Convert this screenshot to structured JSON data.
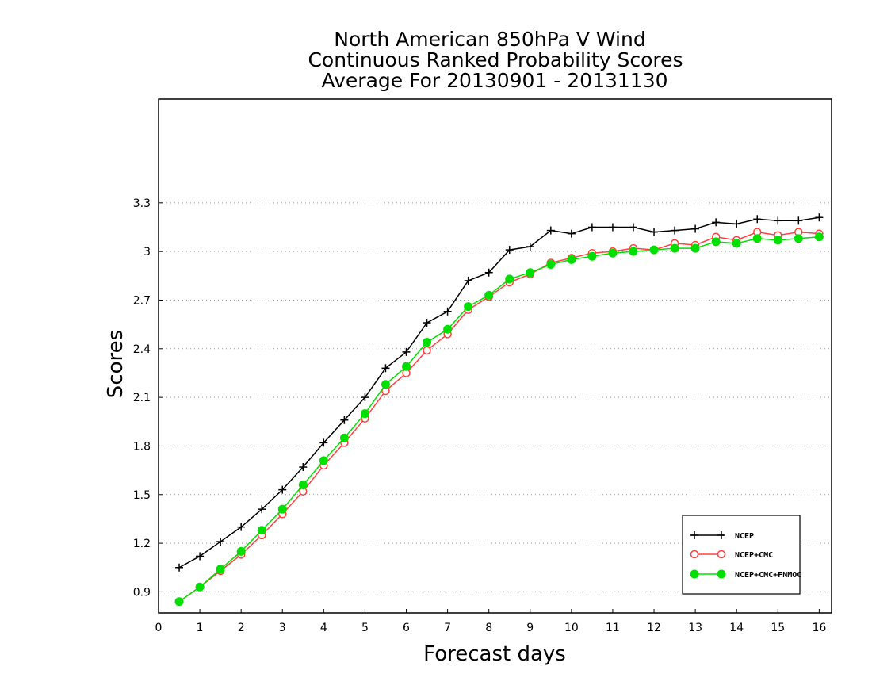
{
  "chart_data": {
    "type": "line",
    "title_lines": [
      "North American 850hPa V Wind",
      "Continuous Ranked Probability Scores",
      "Average For 20130901 - 20131130"
    ],
    "xlabel": "Forecast days",
    "ylabel": "Scores",
    "xlim": [
      0,
      16.3
    ],
    "ylim": [
      0.77,
      3.94
    ],
    "x_ticks": [
      0,
      1,
      2,
      3,
      4,
      5,
      6,
      7,
      8,
      9,
      10,
      11,
      12,
      13,
      14,
      15,
      16
    ],
    "y_ticks": [
      0.9,
      1.2,
      1.5,
      1.8,
      2.1,
      2.4,
      2.7,
      3.0,
      3.3
    ],
    "y_tick_labels": [
      "0.9",
      "1.2",
      "1.5",
      "1.8",
      "2.1",
      "2.4",
      "2.7",
      "3",
      "3.3"
    ],
    "grid": "horizontal dotted",
    "legend_position": "bottom-right",
    "x": [
      0.5,
      1,
      1.5,
      2,
      2.5,
      3,
      3.5,
      4,
      4.5,
      5,
      5.5,
      6,
      6.5,
      7,
      7.5,
      8,
      8.5,
      9,
      9.5,
      10,
      10.5,
      11,
      11.5,
      12,
      12.5,
      13,
      13.5,
      14,
      14.5,
      15,
      15.5,
      16
    ],
    "series": [
      {
        "name": "NCEP",
        "color": "#000000",
        "marker": "plus",
        "values": [
          1.05,
          1.12,
          1.21,
          1.3,
          1.41,
          1.53,
          1.67,
          1.82,
          1.96,
          2.1,
          2.28,
          2.38,
          2.56,
          2.63,
          2.82,
          2.87,
          3.01,
          3.03,
          3.13,
          3.11,
          3.15,
          3.15,
          3.15,
          3.12,
          3.13,
          3.14,
          3.18,
          3.17,
          3.2,
          3.19,
          3.19,
          3.21
        ]
      },
      {
        "name": "NCEP+CMC",
        "color": "#ff4040",
        "marker": "open-circle",
        "values": [
          0.84,
          0.93,
          1.03,
          1.13,
          1.25,
          1.38,
          1.52,
          1.68,
          1.82,
          1.97,
          2.14,
          2.25,
          2.39,
          2.49,
          2.64,
          2.72,
          2.81,
          2.86,
          2.93,
          2.96,
          2.99,
          3.0,
          3.02,
          3.01,
          3.05,
          3.04,
          3.09,
          3.07,
          3.12,
          3.1,
          3.12,
          3.11
        ]
      },
      {
        "name": "NCEP+CMC+FNMOC",
        "color": "#00e000",
        "marker": "filled-circle",
        "values": [
          0.84,
          0.93,
          1.04,
          1.15,
          1.28,
          1.41,
          1.56,
          1.71,
          1.85,
          2.0,
          2.18,
          2.29,
          2.44,
          2.52,
          2.66,
          2.73,
          2.83,
          2.87,
          2.92,
          2.95,
          2.97,
          2.99,
          3.0,
          3.01,
          3.02,
          3.02,
          3.06,
          3.05,
          3.08,
          3.07,
          3.08,
          3.09
        ]
      }
    ]
  }
}
